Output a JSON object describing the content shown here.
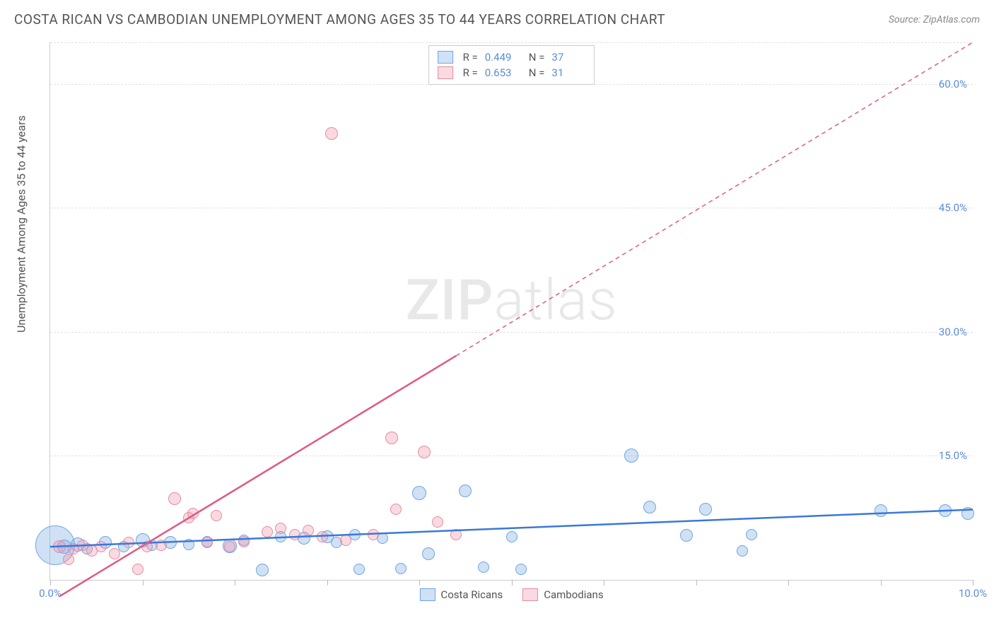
{
  "title": "COSTA RICAN VS CAMBODIAN UNEMPLOYMENT AMONG AGES 35 TO 44 YEARS CORRELATION CHART",
  "source": "Source: ZipAtlas.com",
  "y_axis_title": "Unemployment Among Ages 35 to 44 years",
  "watermark_bold": "ZIP",
  "watermark_light": "atlas",
  "chart": {
    "type": "scatter",
    "xlim": [
      0,
      10
    ],
    "ylim": [
      0,
      65
    ],
    "x_ticks": [
      0,
      1,
      2,
      3,
      4,
      5,
      6,
      7,
      8,
      9,
      10
    ],
    "x_tick_labels": {
      "0": "0.0%",
      "10": "10.0%"
    },
    "y_gridlines": [
      15,
      30,
      45,
      60,
      65
    ],
    "y_tick_labels": {
      "15": "15.0%",
      "30": "30.0%",
      "45": "45.0%",
      "60": "60.0%"
    },
    "background_color": "#ffffff",
    "grid_color": "#e0e0e0",
    "axis_color": "#cccccc",
    "tick_label_color": "#5a8dd6",
    "series": [
      {
        "name": "Costa Ricans",
        "fill": "rgba(120,170,230,0.35)",
        "stroke": "#6fa5e0",
        "line_color": "#3b78d8",
        "line_dash": "none",
        "trend": {
          "x1": 0,
          "y1": 4.0,
          "x2": 10,
          "y2": 8.5
        },
        "stats": {
          "R": "0.449",
          "N": "37"
        },
        "points": [
          {
            "x": 0.05,
            "y": 4.2,
            "r": 28
          },
          {
            "x": 0.15,
            "y": 4.0,
            "r": 10
          },
          {
            "x": 0.3,
            "y": 4.3,
            "r": 10
          },
          {
            "x": 0.4,
            "y": 3.8,
            "r": 8
          },
          {
            "x": 0.6,
            "y": 4.5,
            "r": 9
          },
          {
            "x": 0.8,
            "y": 4.0,
            "r": 8
          },
          {
            "x": 1.0,
            "y": 4.8,
            "r": 10
          },
          {
            "x": 1.1,
            "y": 4.2,
            "r": 8
          },
          {
            "x": 1.3,
            "y": 4.5,
            "r": 9
          },
          {
            "x": 1.5,
            "y": 4.3,
            "r": 8
          },
          {
            "x": 1.7,
            "y": 4.6,
            "r": 8
          },
          {
            "x": 1.95,
            "y": 4.1,
            "r": 10
          },
          {
            "x": 2.1,
            "y": 4.8,
            "r": 8
          },
          {
            "x": 2.3,
            "y": 1.2,
            "r": 9
          },
          {
            "x": 2.5,
            "y": 5.2,
            "r": 8
          },
          {
            "x": 2.75,
            "y": 5.0,
            "r": 9
          },
          {
            "x": 3.0,
            "y": 5.2,
            "r": 9
          },
          {
            "x": 3.1,
            "y": 4.5,
            "r": 8
          },
          {
            "x": 3.3,
            "y": 5.5,
            "r": 8
          },
          {
            "x": 3.35,
            "y": 1.3,
            "r": 8
          },
          {
            "x": 3.6,
            "y": 5.0,
            "r": 8
          },
          {
            "x": 3.8,
            "y": 1.4,
            "r": 8
          },
          {
            "x": 4.0,
            "y": 10.5,
            "r": 10
          },
          {
            "x": 4.1,
            "y": 3.2,
            "r": 9
          },
          {
            "x": 4.5,
            "y": 10.8,
            "r": 9
          },
          {
            "x": 4.7,
            "y": 1.5,
            "r": 8
          },
          {
            "x": 5.0,
            "y": 5.2,
            "r": 8
          },
          {
            "x": 5.1,
            "y": 1.3,
            "r": 8
          },
          {
            "x": 6.3,
            "y": 15.0,
            "r": 10
          },
          {
            "x": 6.5,
            "y": 8.8,
            "r": 9
          },
          {
            "x": 6.9,
            "y": 5.4,
            "r": 9
          },
          {
            "x": 7.1,
            "y": 8.5,
            "r": 9
          },
          {
            "x": 7.5,
            "y": 3.5,
            "r": 8
          },
          {
            "x": 7.6,
            "y": 5.5,
            "r": 8
          },
          {
            "x": 9.0,
            "y": 8.4,
            "r": 9
          },
          {
            "x": 9.7,
            "y": 8.4,
            "r": 9
          },
          {
            "x": 9.95,
            "y": 8.0,
            "r": 9
          }
        ]
      },
      {
        "name": "Cambodians",
        "fill": "rgba(240,150,170,0.35)",
        "stroke": "#e68aa3",
        "line_color": "#e05a84",
        "line_dash": "6,5",
        "trend": {
          "x1": 0.1,
          "y1": -2,
          "x2": 10,
          "y2": 65
        },
        "trend_solid_until_x": 4.4,
        "stats": {
          "R": "0.653",
          "N": "31"
        },
        "points": [
          {
            "x": 0.1,
            "y": 4.0,
            "r": 9
          },
          {
            "x": 0.2,
            "y": 2.5,
            "r": 8
          },
          {
            "x": 0.25,
            "y": 3.8,
            "r": 8
          },
          {
            "x": 0.35,
            "y": 4.2,
            "r": 8
          },
          {
            "x": 0.45,
            "y": 3.5,
            "r": 8
          },
          {
            "x": 0.55,
            "y": 4.0,
            "r": 8
          },
          {
            "x": 0.7,
            "y": 3.2,
            "r": 8
          },
          {
            "x": 0.85,
            "y": 4.5,
            "r": 8
          },
          {
            "x": 0.95,
            "y": 1.3,
            "r": 8
          },
          {
            "x": 1.05,
            "y": 4.0,
            "r": 8
          },
          {
            "x": 1.2,
            "y": 4.2,
            "r": 8
          },
          {
            "x": 1.35,
            "y": 9.8,
            "r": 9
          },
          {
            "x": 1.5,
            "y": 7.5,
            "r": 8
          },
          {
            "x": 1.55,
            "y": 8.0,
            "r": 8
          },
          {
            "x": 1.7,
            "y": 4.5,
            "r": 8
          },
          {
            "x": 1.8,
            "y": 7.8,
            "r": 8
          },
          {
            "x": 1.95,
            "y": 4.0,
            "r": 8
          },
          {
            "x": 2.1,
            "y": 4.6,
            "r": 8
          },
          {
            "x": 2.35,
            "y": 5.8,
            "r": 8
          },
          {
            "x": 2.5,
            "y": 6.2,
            "r": 8
          },
          {
            "x": 2.65,
            "y": 5.5,
            "r": 8
          },
          {
            "x": 2.8,
            "y": 6.0,
            "r": 8
          },
          {
            "x": 2.95,
            "y": 5.2,
            "r": 8
          },
          {
            "x": 3.05,
            "y": 54.0,
            "r": 9
          },
          {
            "x": 3.2,
            "y": 4.8,
            "r": 8
          },
          {
            "x": 3.5,
            "y": 5.5,
            "r": 8
          },
          {
            "x": 3.7,
            "y": 17.2,
            "r": 9
          },
          {
            "x": 3.75,
            "y": 8.5,
            "r": 8
          },
          {
            "x": 4.05,
            "y": 15.5,
            "r": 9
          },
          {
            "x": 4.2,
            "y": 7.0,
            "r": 8
          },
          {
            "x": 4.4,
            "y": 5.5,
            "r": 8
          }
        ]
      }
    ]
  },
  "legend_top_labels": {
    "R": "R =",
    "N": "N ="
  },
  "legend_bottom": [
    {
      "label": "Costa Ricans",
      "fill": "rgba(120,170,230,0.35)",
      "stroke": "#6fa5e0"
    },
    {
      "label": "Cambodians",
      "fill": "rgba(240,150,170,0.35)",
      "stroke": "#e68aa3"
    }
  ]
}
